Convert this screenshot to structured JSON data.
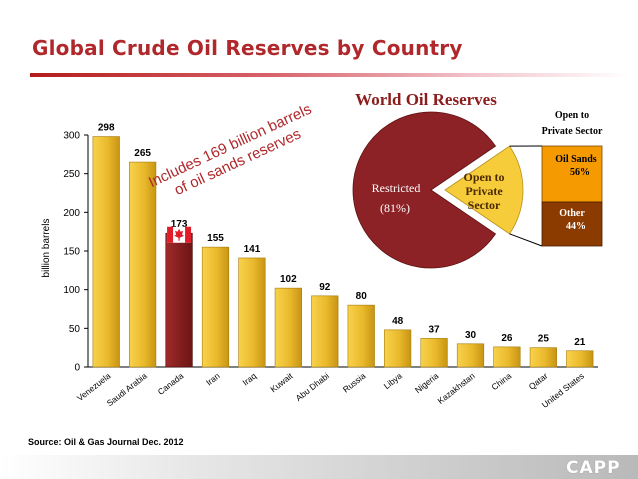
{
  "title": "Global Crude Oil Reserves by Country",
  "source": "Source: Oil & Gas Journal Dec. 2012",
  "logo_text": "CAPP",
  "annotation": {
    "line1": "Includes 169 billion barrels",
    "line2": "of oil sands reserves"
  },
  "colors": {
    "title": "#b0282b",
    "bar": "#f0c13a",
    "highlight_bar": "#8c1c1c",
    "pie_restricted": "#8c2226",
    "pie_open": "#f7cc3a",
    "oil_sands": "#f59a00",
    "other": "#8b3a00"
  },
  "chart_data": [
    {
      "type": "bar",
      "ylabel": "billion barrels",
      "ylim": [
        0,
        300
      ],
      "yticks": [
        0,
        50,
        100,
        150,
        200,
        250,
        300
      ],
      "grid": false,
      "categories": [
        "Venezuela",
        "Saudi Arabia",
        "Canada",
        "Iran",
        "Iraq",
        "Kuwait",
        "Abu Dhabi",
        "Russia",
        "Libya",
        "Nigeria",
        "Kazakhstan",
        "China",
        "Qatar",
        "United States"
      ],
      "values": [
        298,
        265,
        173,
        155,
        141,
        102,
        92,
        80,
        48,
        37,
        30,
        26,
        25,
        21
      ],
      "highlight_category": "Canada",
      "highlight_icon": "canada-flag-icon"
    },
    {
      "type": "pie",
      "title": "World Oil Reserves",
      "slices": [
        {
          "label": "Restricted",
          "value_label": "(81%)",
          "value": 81
        },
        {
          "label": "Open to Private Sector",
          "value": 19
        }
      ],
      "breakdown": {
        "title": "Open to Private Sector",
        "items": [
          {
            "label": "Oil Sands",
            "value_label": "56%",
            "value": 56
          },
          {
            "label": "Other",
            "value_label": "44%",
            "value": 44
          }
        ]
      }
    }
  ]
}
